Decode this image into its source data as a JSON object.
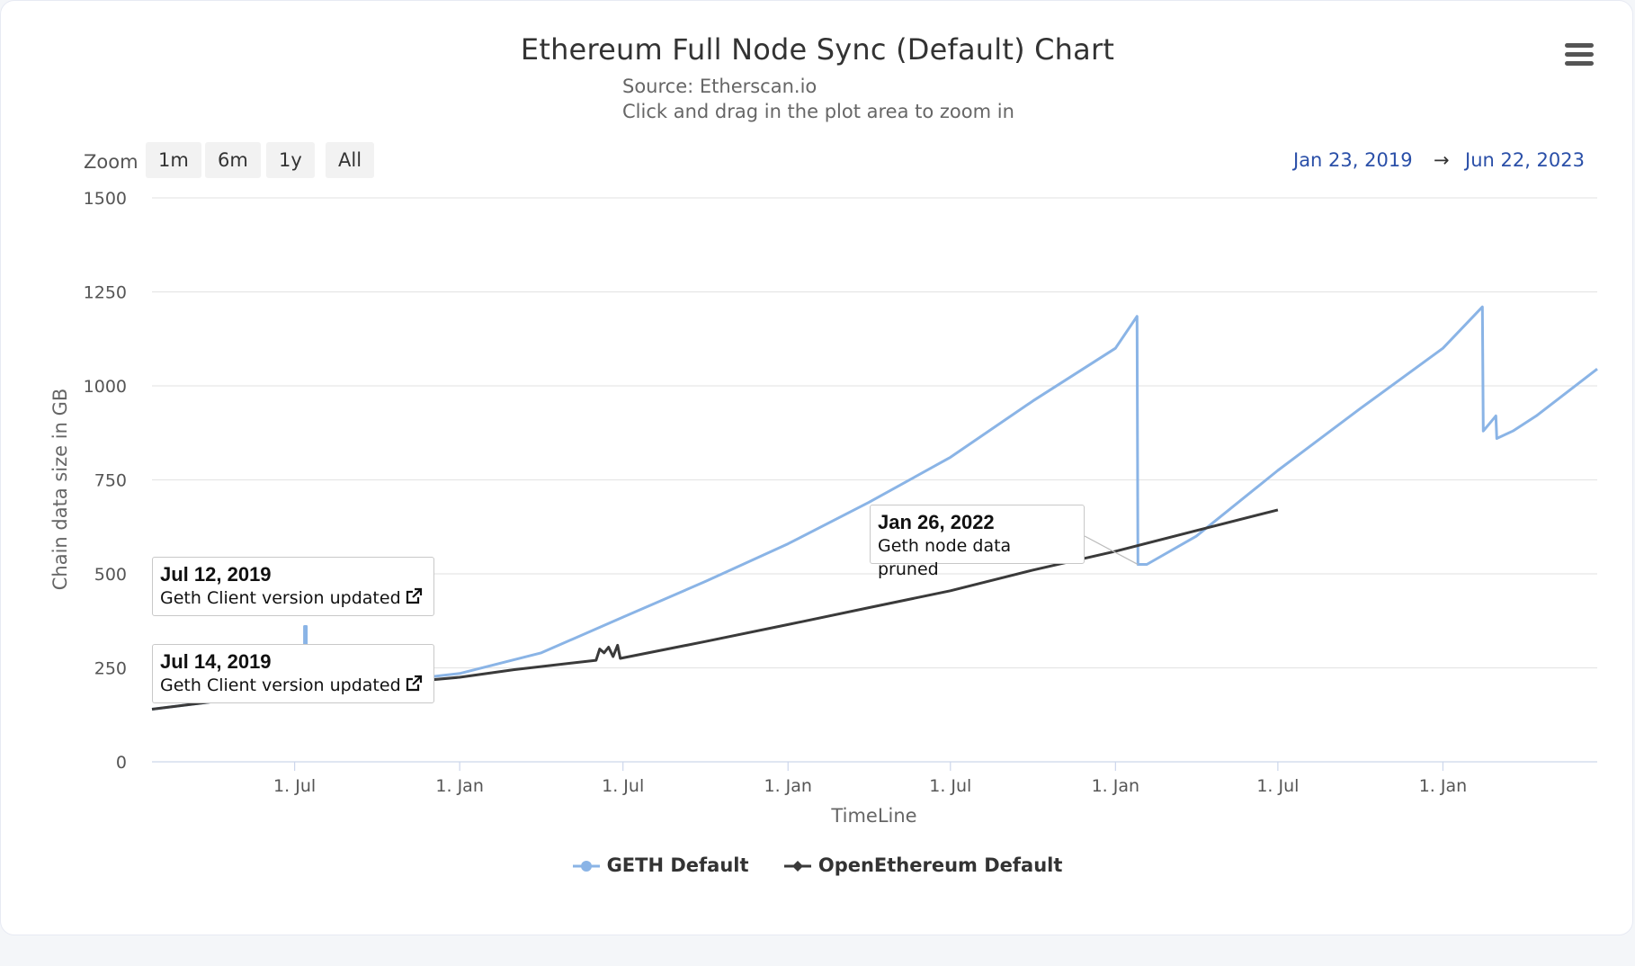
{
  "title": "Ethereum Full Node Sync (Default) Chart",
  "subtitle_line1": "Source: Etherscan.io",
  "subtitle_line2": "Click and drag in the plot area to zoom in",
  "menu_icon": "hamburger-menu-icon",
  "zoom": {
    "label": "Zoom",
    "buttons": [
      "1m",
      "6m",
      "1y",
      "All"
    ]
  },
  "range": {
    "from": "Jan 23, 2019",
    "arrow": "→",
    "to": "Jun 22, 2023"
  },
  "flags": [
    {
      "date": "Jul 12, 2019",
      "text": "Geth Client version updated",
      "icon": "external-link-icon"
    },
    {
      "date": "Jul 14, 2019",
      "text": "Geth Client version updated",
      "icon": "external-link-icon"
    },
    {
      "date": "Jan 26, 2022",
      "text": "Geth node data pruned"
    }
  ],
  "colors": {
    "geth": "#8ab4e6",
    "openethereum": "#3a3a3a",
    "grid": "#e6e6e6",
    "range_text": "#2a4fa8"
  },
  "chart_data": {
    "type": "line",
    "xlabel": "TimeLine",
    "ylabel": "Chain data size in GB",
    "ylim": [
      0,
      1500
    ],
    "yticks": [
      0,
      250,
      500,
      750,
      1000,
      1250,
      1500
    ],
    "xlim": [
      "2019-01-23",
      "2023-06-22"
    ],
    "xticks": [
      {
        "date": "2019-07-01",
        "label": "1. Jul"
      },
      {
        "date": "2020-01-01",
        "label": "1. Jan"
      },
      {
        "date": "2020-07-01",
        "label": "1. Jul"
      },
      {
        "date": "2021-01-01",
        "label": "1. Jan"
      },
      {
        "date": "2021-07-01",
        "label": "1. Jul"
      },
      {
        "date": "2022-01-01",
        "label": "1. Jan"
      },
      {
        "date": "2022-07-01",
        "label": "1. Jul"
      },
      {
        "date": "2023-01-01",
        "label": "1. Jan"
      }
    ],
    "legend_position": "bottom",
    "series": [
      {
        "name": "GETH Default",
        "points": [
          [
            "2019-01-23",
            140
          ],
          [
            "2019-04-01",
            160
          ],
          [
            "2019-07-12",
            190
          ],
          [
            "2019-07-12",
            360
          ],
          [
            "2019-07-14",
            360
          ],
          [
            "2019-07-14",
            195
          ],
          [
            "2019-10-01",
            210
          ],
          [
            "2020-01-01",
            235
          ],
          [
            "2020-04-01",
            290
          ],
          [
            "2020-07-01",
            385
          ],
          [
            "2020-10-01",
            480
          ],
          [
            "2021-01-01",
            580
          ],
          [
            "2021-04-01",
            690
          ],
          [
            "2021-07-01",
            810
          ],
          [
            "2021-10-01",
            960
          ],
          [
            "2022-01-01",
            1100
          ],
          [
            "2022-01-25",
            1185
          ],
          [
            "2022-01-26",
            525
          ],
          [
            "2022-02-05",
            525
          ],
          [
            "2022-04-01",
            600
          ],
          [
            "2022-07-01",
            775
          ],
          [
            "2022-10-01",
            940
          ],
          [
            "2023-01-01",
            1100
          ],
          [
            "2023-02-14",
            1210
          ],
          [
            "2023-02-15",
            880
          ],
          [
            "2023-03-01",
            920
          ],
          [
            "2023-03-02",
            860
          ],
          [
            "2023-03-20",
            880
          ],
          [
            "2023-04-15",
            920
          ],
          [
            "2023-06-22",
            1045
          ]
        ]
      },
      {
        "name": "OpenEthereum Default",
        "points": [
          [
            "2019-01-23",
            140
          ],
          [
            "2019-04-01",
            160
          ],
          [
            "2019-07-01",
            185
          ],
          [
            "2019-10-01",
            205
          ],
          [
            "2020-01-01",
            225
          ],
          [
            "2020-03-01",
            245
          ],
          [
            "2020-06-01",
            270
          ],
          [
            "2020-06-05",
            300
          ],
          [
            "2020-06-10",
            290
          ],
          [
            "2020-06-15",
            305
          ],
          [
            "2020-06-20",
            280
          ],
          [
            "2020-06-25",
            310
          ],
          [
            "2020-06-28",
            275
          ],
          [
            "2020-10-01",
            320
          ],
          [
            "2021-01-01",
            365
          ],
          [
            "2021-04-01",
            410
          ],
          [
            "2021-07-01",
            455
          ],
          [
            "2021-10-01",
            510
          ],
          [
            "2022-01-01",
            560
          ],
          [
            "2022-04-01",
            615
          ],
          [
            "2022-07-01",
            670
          ]
        ]
      }
    ]
  }
}
